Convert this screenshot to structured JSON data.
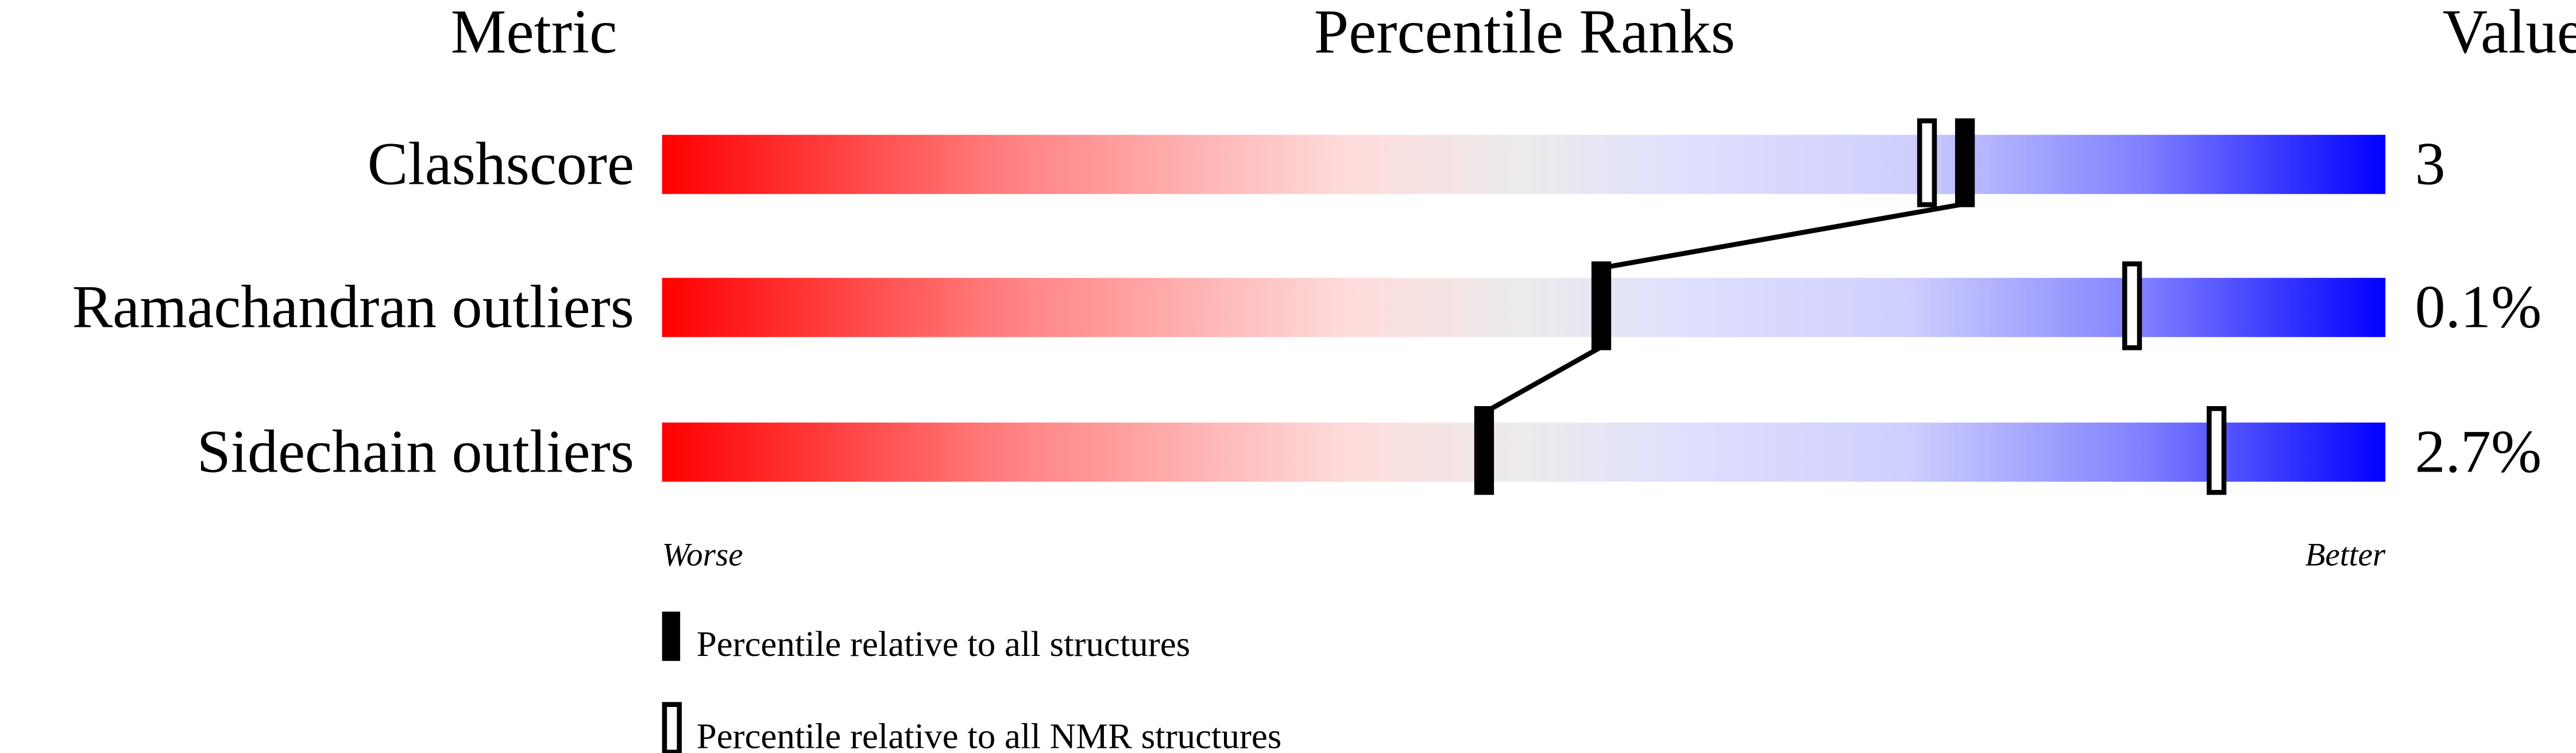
{
  "chart_data": {
    "type": "percentile-bar",
    "headers": {
      "metric": "Metric",
      "ranks": "Percentile Ranks",
      "value": "Value"
    },
    "xlim": [
      0,
      100
    ],
    "metrics": [
      {
        "label": "Clashscore",
        "value": "3",
        "percentile_all": 75.6,
        "percentile_nmr": 73.4
      },
      {
        "label": "Ramachandran outliers",
        "value": "0.1%",
        "percentile_all": 54.5,
        "percentile_nmr": 85.3
      },
      {
        "label": "Sidechain outliers",
        "value": "2.7%",
        "percentile_all": 47.7,
        "percentile_nmr": 90.2
      }
    ],
    "axis_labels": {
      "left": "Worse",
      "right": "Better"
    },
    "legend": [
      {
        "marker": "filled",
        "label": "Percentile relative to all structures"
      },
      {
        "marker": "open",
        "label": "Percentile relative to all NMR structures"
      }
    ],
    "colors": {
      "worse": "#ff0000",
      "middle": "#ececec",
      "better": "#0000ff",
      "marker": "#000000"
    }
  }
}
